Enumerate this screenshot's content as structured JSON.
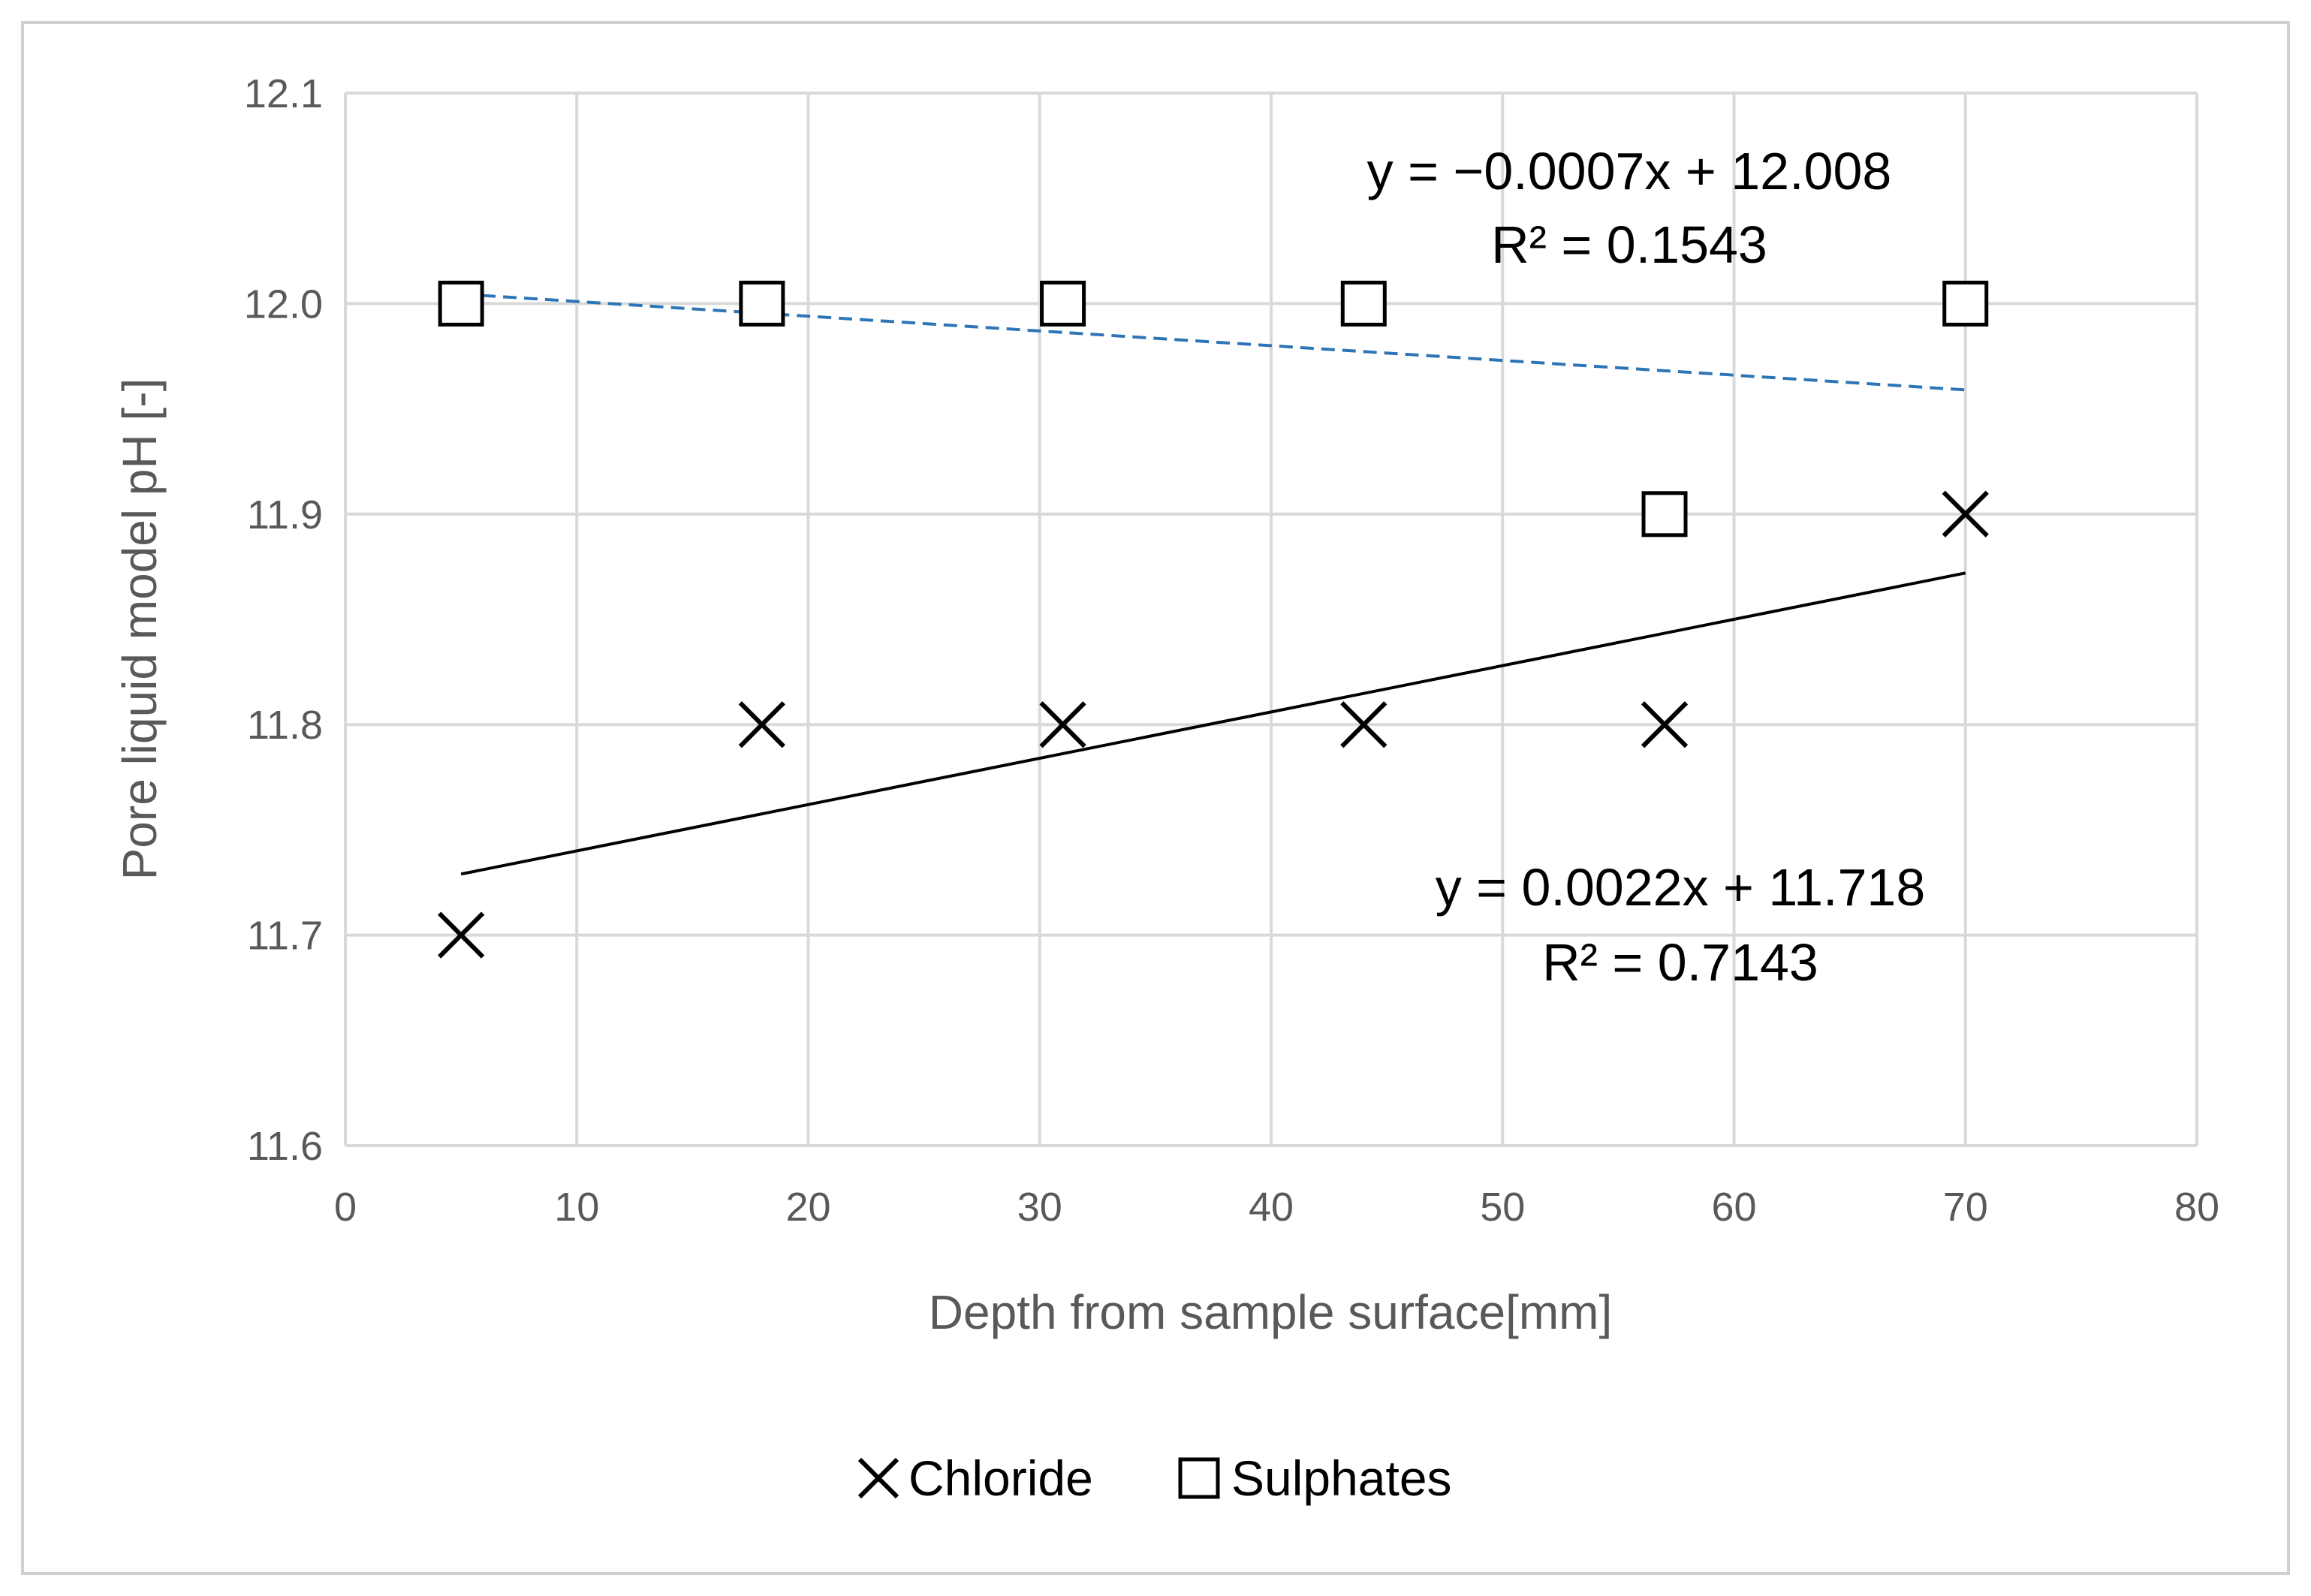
{
  "chart_data": {
    "type": "scatter",
    "title": "",
    "xlabel": "Depth from sample surface[mm]",
    "ylabel": "Pore liquid model pH [-]",
    "xlim": [
      0,
      80
    ],
    "ylim": [
      11.6,
      12.1
    ],
    "x_ticks": [
      "0",
      "10",
      "20",
      "30",
      "40",
      "50",
      "60",
      "70",
      "80"
    ],
    "y_ticks": [
      "11.6",
      "11.7",
      "11.8",
      "11.9",
      "12.0",
      "12.1"
    ],
    "grid": true,
    "legend_position": "bottom",
    "series": [
      {
        "name": "Chloride",
        "marker": "x",
        "color": "#000000",
        "x": [
          5,
          18,
          31,
          44,
          57,
          70
        ],
        "y": [
          11.7,
          11.8,
          11.8,
          11.8,
          11.8,
          11.9
        ],
        "trendline": {
          "slope": 0.0022,
          "intercept": 11.718,
          "style": "solid",
          "color": "#000000",
          "equation": "y = 0.0022x + 11.718",
          "r2": "R² = 0.7143"
        }
      },
      {
        "name": "Sulphates",
        "marker": "square",
        "color": "#000000",
        "x": [
          5,
          18,
          31,
          44,
          57,
          70
        ],
        "y": [
          12.0,
          12.0,
          12.0,
          12.0,
          11.9,
          12.0
        ],
        "trendline": {
          "slope": -0.0007,
          "intercept": 12.008,
          "style": "dashed",
          "color": "#2E75B6",
          "equation": "y = −0.0007x + 12.008",
          "r2": "R² = 0.1543"
        }
      }
    ]
  }
}
